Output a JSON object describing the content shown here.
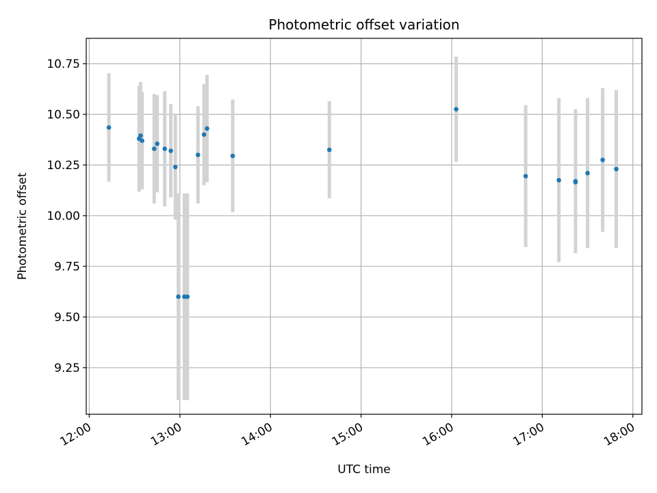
{
  "chart_data": {
    "type": "scatter",
    "title": "Photometric offset variation",
    "xlabel": "UTC time",
    "ylabel": "Photometric offset",
    "grid": true,
    "xlim": [
      "11:58",
      "18:06"
    ],
    "ylim": [
      9.02,
      10.875
    ],
    "x_ticks": [
      "12:00",
      "13:00",
      "14:00",
      "15:00",
      "16:00",
      "17:00",
      "18:00"
    ],
    "y_ticks": [
      "9.25",
      "9.50",
      "9.75",
      "10.00",
      "10.25",
      "10.50",
      "10.75"
    ],
    "colors": {
      "point": "#1f77b4",
      "errorbar": "#d3d3d3",
      "grid": "#b0b0b0"
    },
    "series": [
      {
        "points": [
          {
            "x": "12:13",
            "y": 10.435,
            "err": 0.268
          },
          {
            "x": "12:33",
            "y": 10.38,
            "err": 0.262
          },
          {
            "x": "12:34",
            "y": 10.395,
            "err": 0.265
          },
          {
            "x": "12:35",
            "y": 10.37,
            "err": 0.24
          },
          {
            "x": "12:43",
            "y": 10.33,
            "err": 0.27
          },
          {
            "x": "12:45",
            "y": 10.355,
            "err": 0.24
          },
          {
            "x": "12:50",
            "y": 10.33,
            "err": 0.285
          },
          {
            "x": "12:54",
            "y": 10.32,
            "err": 0.23
          },
          {
            "x": "12:57",
            "y": 10.24,
            "err": 0.26
          },
          {
            "x": "12:59",
            "y": 9.6,
            "err": 0.51
          },
          {
            "x": "13:03",
            "y": 9.6,
            "err": 0.51
          },
          {
            "x": "13:05",
            "y": 9.6,
            "err": 0.51
          },
          {
            "x": "13:12",
            "y": 10.3,
            "err": 0.24
          },
          {
            "x": "13:16",
            "y": 10.4,
            "err": 0.25
          },
          {
            "x": "13:18",
            "y": 10.43,
            "err": 0.265
          },
          {
            "x": "13:35",
            "y": 10.295,
            "err": 0.278
          },
          {
            "x": "14:39",
            "y": 10.325,
            "err": 0.24
          },
          {
            "x": "16:03",
            "y": 10.525,
            "err": 0.26
          },
          {
            "x": "16:49",
            "y": 10.195,
            "err": 0.35
          },
          {
            "x": "17:11",
            "y": 10.175,
            "err": 0.405
          },
          {
            "x": "17:22",
            "y": 10.17,
            "err": 0.355
          },
          {
            "x": "17:22",
            "y": 10.165,
            "err": 0.0
          },
          {
            "x": "17:30",
            "y": 10.21,
            "err": 0.37
          },
          {
            "x": "17:40",
            "y": 10.275,
            "err": 0.355
          },
          {
            "x": "17:49",
            "y": 10.23,
            "err": 0.39
          }
        ]
      }
    ]
  }
}
